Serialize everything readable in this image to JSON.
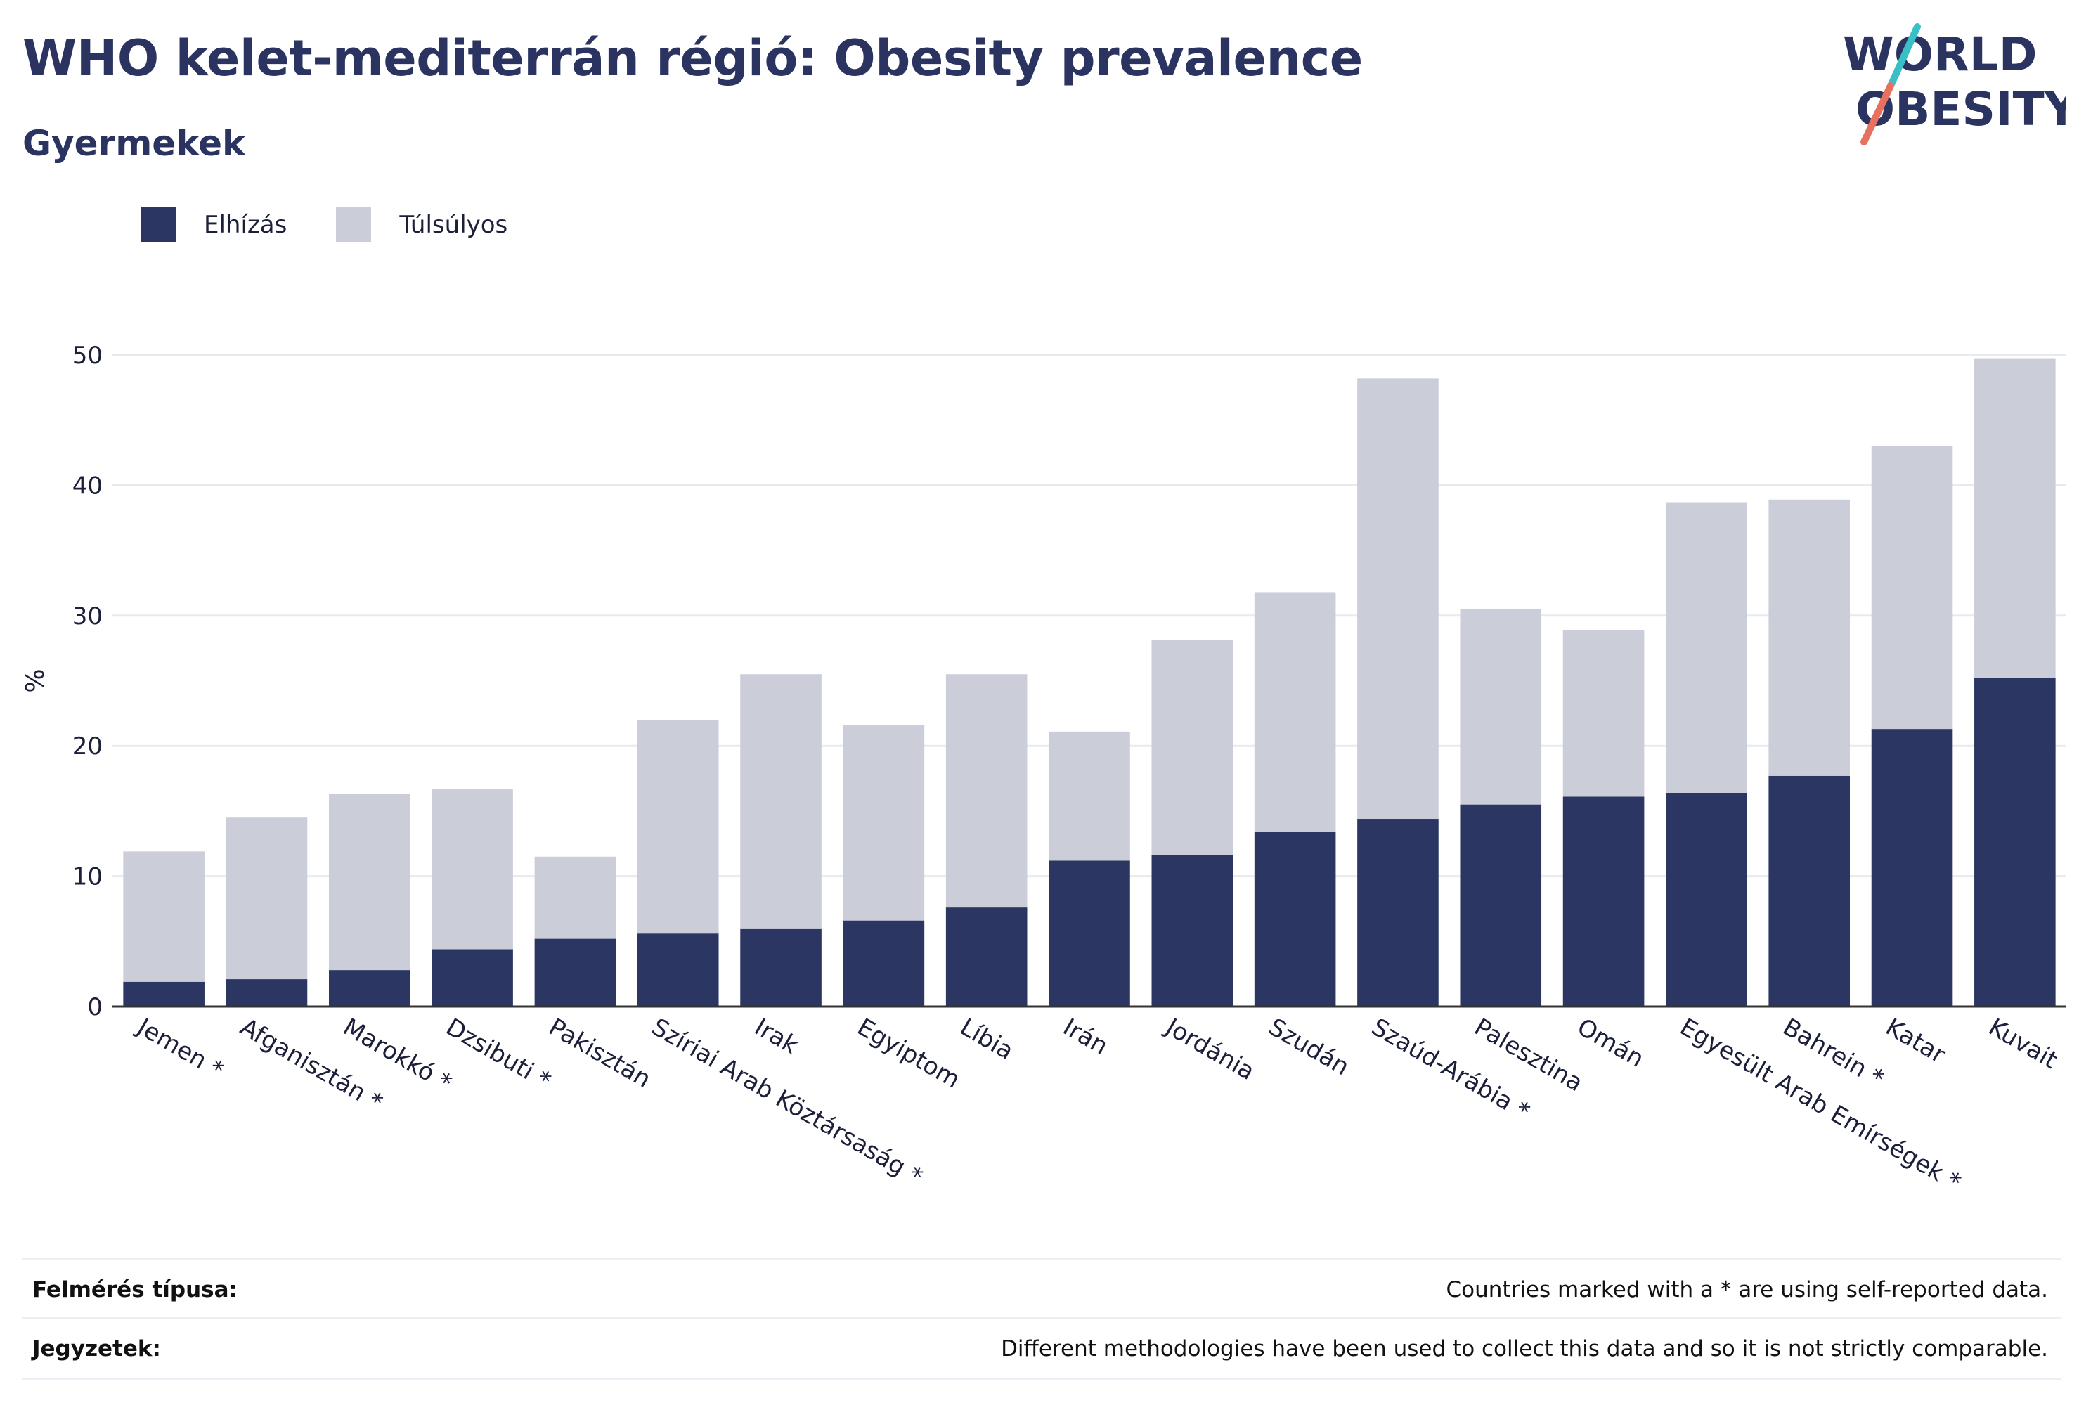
{
  "header": {
    "title": "WHO kelet-mediterrán régió: Obesity prevalence",
    "subtitle": "Gyermekek"
  },
  "logo": {
    "line1": "WORLD",
    "line2": "OBESITY",
    "colors": {
      "text": "#2b3461",
      "slash_top": "#3bbfc6",
      "slash_bottom": "#e8705f"
    }
  },
  "legend": {
    "items": [
      {
        "label": "Elhízás",
        "color": "#2b3663"
      },
      {
        "label": "Túlsúlyos",
        "color": "#cbcdd9"
      }
    ]
  },
  "chart_data": {
    "type": "bar",
    "stacked": true,
    "ylabel": "%",
    "ylim": [
      0,
      50
    ],
    "yticks": [
      0,
      10,
      20,
      30,
      40,
      50
    ],
    "grid": true,
    "legend_position": "top-left",
    "categories": [
      "Jemen *",
      "Afganisztán *",
      "Marokkó *",
      "Dzsibuti *",
      "Pakisztán",
      "Szíriai Arab Köztársaság *",
      "Irak",
      "Egyiptom",
      "Líbia",
      "Irán",
      "Jordánia",
      "Szudán",
      "Szaúd-Arábia *",
      "Palesztina",
      "Omán",
      "Egyesült Arab Emírségek *",
      "Bahrein *",
      "Katar",
      "Kuvait"
    ],
    "series": [
      {
        "name": "Elhízás",
        "color": "#2b3663",
        "values": [
          1.9,
          2.1,
          2.8,
          4.4,
          5.2,
          5.6,
          6.0,
          6.6,
          7.6,
          11.2,
          11.6,
          13.4,
          14.4,
          15.5,
          16.1,
          16.4,
          17.7,
          21.3,
          25.2
        ]
      },
      {
        "name": "Túlsúlyos",
        "color": "#cbcdd9",
        "values": [
          10.0,
          12.4,
          13.5,
          12.3,
          6.3,
          16.4,
          19.5,
          15.0,
          17.9,
          9.9,
          16.5,
          18.4,
          33.8,
          15.0,
          12.8,
          22.3,
          21.2,
          21.7,
          24.5
        ]
      }
    ]
  },
  "footer": {
    "rows": [
      {
        "label": "Felmérés típusa:",
        "value": "Countries marked with a * are using self-reported data."
      },
      {
        "label": "Jegyzetek:",
        "value": "Different methodologies have been used to collect this data and so it is not strictly comparable."
      }
    ]
  }
}
